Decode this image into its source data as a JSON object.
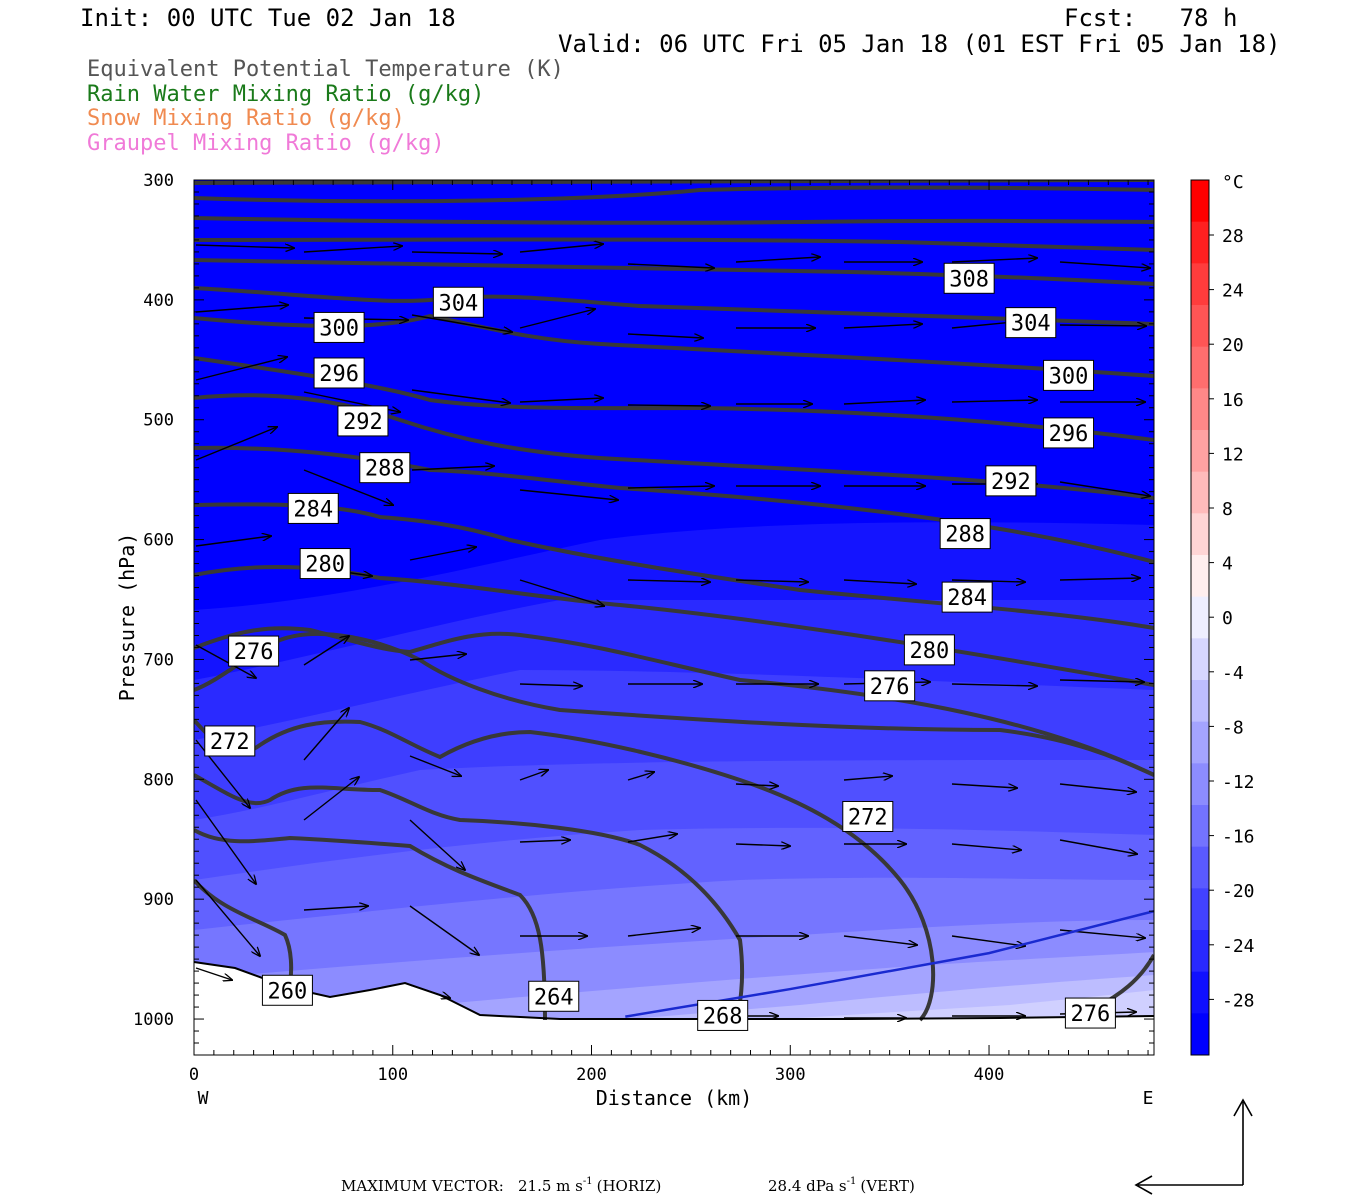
{
  "header": {
    "init": "Init: 00 UTC Tue 02 Jan 18",
    "fcst": "Fcst:   78 h",
    "valid": "Valid: 06 UTC Fri 05 Jan 18 (01 EST Fri 05 Jan 18)"
  },
  "legend": [
    {
      "label": "Equivalent Potential Temperature (K)",
      "color": "#555555"
    },
    {
      "label": "Rain Water Mixing Ratio (g/kg)",
      "color": "#1a7a1a"
    },
    {
      "label": "Snow Mixing Ratio (g/kg)",
      "color": "#f08a50"
    },
    {
      "label": "Graupel Mixing Ratio (g/kg)",
      "color": "#f07ad8"
    }
  ],
  "footer": {
    "max_vector_label": "MAXIMUM VECTOR:",
    "horiz": "21.5 m s",
    "horiz_unit": "(HORIZ)",
    "vert": "28.4 dPa s",
    "vert_unit": "(VERT)",
    "exponent": "-1"
  },
  "chart_data": {
    "type": "heatmap",
    "title": "",
    "xlabel": "Distance (km)",
    "ylabel": "Pressure (hPa)",
    "xlim": [
      0,
      483
    ],
    "ylim": [
      1030,
      300
    ],
    "x_ticks": [
      0,
      100,
      200,
      300,
      400
    ],
    "y_ticks": [
      300,
      400,
      500,
      600,
      700,
      800,
      900,
      1000
    ],
    "x_end_labels": {
      "left": "W",
      "right": "E"
    },
    "colorbar": {
      "unit": "°C",
      "labels": [
        "28",
        "24",
        "20",
        "16",
        "12",
        "8",
        "4",
        "0",
        "-4",
        "-8",
        "-12",
        "-16",
        "-20",
        "-24",
        "-28"
      ],
      "colors": [
        "#ff0000",
        "#ff2020",
        "#ff3c3c",
        "#ff5555",
        "#ff6e6e",
        "#ff8888",
        "#ffa2a2",
        "#ffbbbb",
        "#ffd5d5",
        "#ffeeee",
        "#eeeeff",
        "#d6d6ff",
        "#bdbdff",
        "#a4a4ff",
        "#8c8cff",
        "#7373ff",
        "#5a5aff",
        "#4242ff",
        "#2929ff",
        "#1010ff",
        "#0000ff"
      ]
    },
    "theta_e_labels": [
      {
        "text": "304",
        "x": 133,
        "p": 402
      },
      {
        "text": "300",
        "x": 73,
        "p": 423
      },
      {
        "text": "296",
        "x": 73,
        "p": 461
      },
      {
        "text": "292",
        "x": 85,
        "p": 501
      },
      {
        "text": "288",
        "x": 96,
        "p": 540
      },
      {
        "text": "284",
        "x": 60,
        "p": 574
      },
      {
        "text": "280",
        "x": 66,
        "p": 620
      },
      {
        "text": "276",
        "x": 30,
        "p": 693
      },
      {
        "text": "272",
        "x": 18,
        "p": 768
      },
      {
        "text": "260",
        "x": 47,
        "p": 976
      },
      {
        "text": "264",
        "x": 181,
        "p": 981
      },
      {
        "text": "268",
        "x": 266,
        "p": 997
      },
      {
        "text": "272",
        "x": 339,
        "p": 831
      },
      {
        "text": "276",
        "x": 350,
        "p": 722
      },
      {
        "text": "280",
        "x": 370,
        "p": 692
      },
      {
        "text": "284",
        "x": 389,
        "p": 648
      },
      {
        "text": "288",
        "x": 388,
        "p": 595
      },
      {
        "text": "292",
        "x": 411,
        "p": 551
      },
      {
        "text": "296",
        "x": 440,
        "p": 511
      },
      {
        "text": "300",
        "x": 440,
        "p": 463
      },
      {
        "text": "304",
        "x": 421,
        "p": 419
      },
      {
        "text": "308",
        "x": 390,
        "p": 382
      },
      {
        "text": "276",
        "x": 451,
        "p": 995
      }
    ],
    "freezing_line": [
      [
        217,
        998
      ],
      [
        300,
        975
      ],
      [
        400,
        945
      ],
      [
        483,
        910
      ]
    ]
  }
}
